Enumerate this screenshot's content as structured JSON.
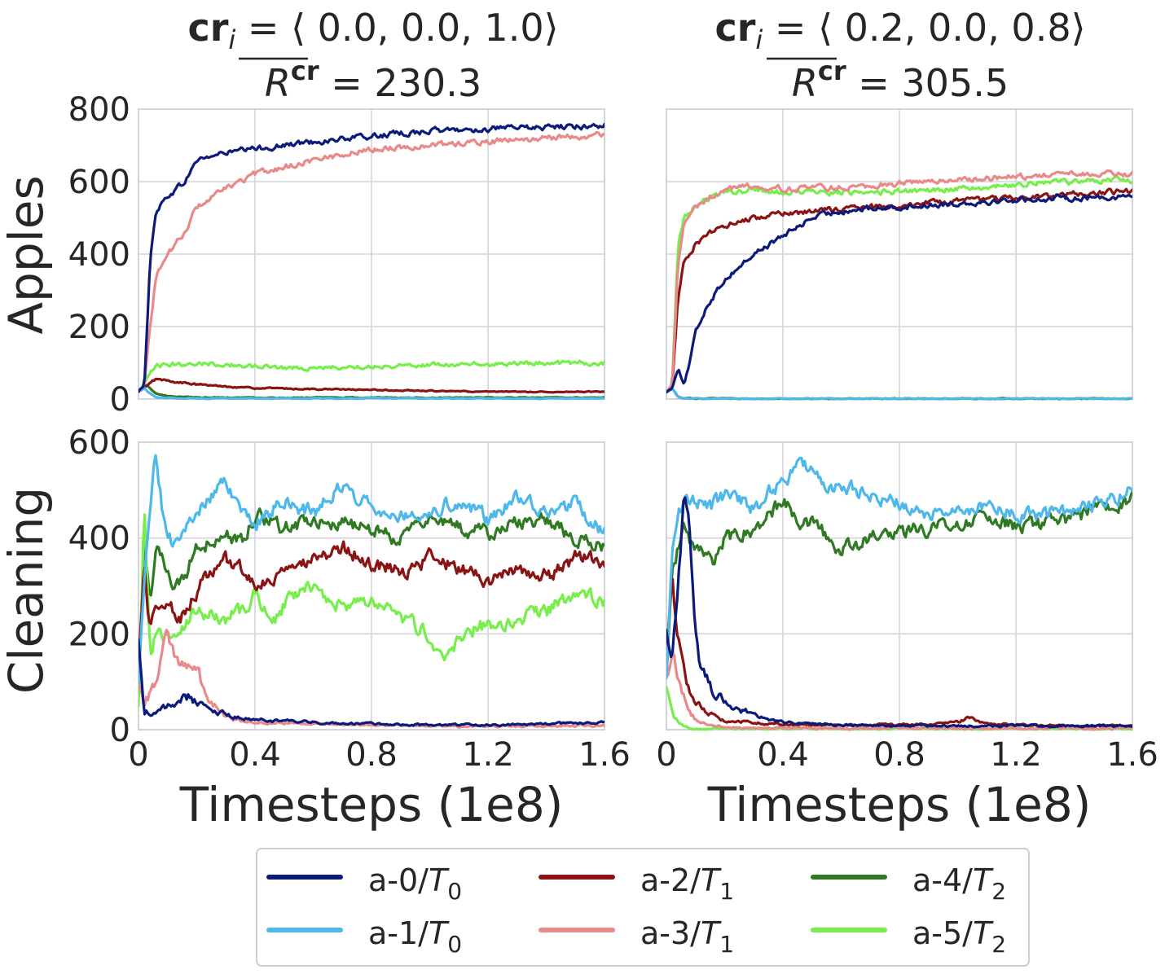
{
  "figure": {
    "panels": [
      {
        "title_cr_bold": "cr",
        "title_cr_sub": "i",
        "title_cr_rest": " = ⟨ 0.0, 0.0, 1.0⟩",
        "title_r_main": "R",
        "title_r_sup": "cr",
        "title_r_rest": " = 230.3"
      },
      {
        "title_cr_bold": "cr",
        "title_cr_sub": "i",
        "title_cr_rest": " = ⟨ 0.2, 0.0, 0.8⟩",
        "title_r_main": "R",
        "title_r_sup": "cr",
        "title_r_rest": " = 305.5"
      }
    ],
    "row_labels": [
      "Apples",
      "Cleaning"
    ],
    "xlabel": "Timesteps (1e8)",
    "x_ticks": [
      "0",
      "0.4",
      "0.8",
      "1.2",
      "1.6"
    ],
    "apples_ticks": [
      "0",
      "200",
      "400",
      "600",
      "800"
    ],
    "cleaning_ticks": [
      "0",
      "200",
      "400",
      "600"
    ]
  },
  "legend": [
    {
      "agent": "a-0/",
      "team": "T",
      "sub": "0",
      "color": "#0c1a7a"
    },
    {
      "agent": "a-1/",
      "team": "T",
      "sub": "0",
      "color": "#4fb8ea"
    },
    {
      "agent": "a-2/",
      "team": "T",
      "sub": "1",
      "color": "#8a1414"
    },
    {
      "agent": "a-3/",
      "team": "T",
      "sub": "1",
      "color": "#e88a8a"
    },
    {
      "agent": "a-4/",
      "team": "T",
      "sub": "2",
      "color": "#2f7a22"
    },
    {
      "agent": "a-5/",
      "team": "T",
      "sub": "2",
      "color": "#78ee4c"
    }
  ],
  "chart_data": [
    {
      "type": "line",
      "title": "cr_i = ⟨0.0, 0.0, 1.0⟩, R̄cr = 230.3",
      "ylabel": "Apples",
      "xlabel": "Timesteps (1e8)",
      "xlim": [
        0,
        1.6
      ],
      "ylim": [
        0,
        800
      ],
      "grid": true,
      "series": [
        {
          "name": "a-0/T0",
          "x": [
            0,
            0.02,
            0.04,
            0.06,
            0.1,
            0.16,
            0.2,
            0.3,
            0.4,
            0.6,
            0.8,
            1.0,
            1.2,
            1.4,
            1.6
          ],
          "y": [
            20,
            40,
            380,
            520,
            560,
            600,
            660,
            680,
            690,
            710,
            725,
            740,
            745,
            750,
            755
          ]
        },
        {
          "name": "a-1/T0",
          "x": [
            0,
            0.02,
            0.04,
            0.06,
            0.1,
            0.2,
            0.4,
            0.8,
            1.2,
            1.6
          ],
          "y": [
            20,
            30,
            15,
            5,
            3,
            2,
            2,
            2,
            2,
            2
          ]
        },
        {
          "name": "a-2/T1",
          "x": [
            0,
            0.02,
            0.04,
            0.06,
            0.1,
            0.2,
            0.4,
            0.8,
            1.2,
            1.6
          ],
          "y": [
            20,
            30,
            45,
            55,
            50,
            40,
            30,
            25,
            20,
            20
          ]
        },
        {
          "name": "a-3/T1",
          "x": [
            0,
            0.02,
            0.04,
            0.06,
            0.1,
            0.16,
            0.2,
            0.3,
            0.4,
            0.6,
            0.8,
            1.0,
            1.2,
            1.4,
            1.6
          ],
          "y": [
            20,
            40,
            200,
            340,
            400,
            460,
            530,
            580,
            620,
            660,
            690,
            700,
            710,
            720,
            730
          ]
        },
        {
          "name": "a-4/T2",
          "x": [
            0,
            0.02,
            0.04,
            0.06,
            0.1,
            0.2,
            0.4,
            0.8,
            1.2,
            1.6
          ],
          "y": [
            20,
            40,
            30,
            15,
            8,
            5,
            4,
            4,
            4,
            4
          ]
        },
        {
          "name": "a-5/T2",
          "x": [
            0,
            0.02,
            0.04,
            0.06,
            0.1,
            0.2,
            0.4,
            0.6,
            0.8,
            1.0,
            1.2,
            1.4,
            1.6
          ],
          "y": [
            20,
            40,
            70,
            90,
            95,
            100,
            90,
            85,
            90,
            95,
            95,
            100,
            100
          ]
        }
      ]
    },
    {
      "type": "line",
      "title": "cr_i = ⟨0.2, 0.0, 0.8⟩, R̄cr = 305.5",
      "ylabel": "Apples",
      "xlabel": "Timesteps (1e8)",
      "xlim": [
        0,
        1.6
      ],
      "ylim": [
        0,
        800
      ],
      "grid": true,
      "series": [
        {
          "name": "a-0/T0",
          "x": [
            0,
            0.02,
            0.04,
            0.06,
            0.08,
            0.1,
            0.14,
            0.2,
            0.3,
            0.4,
            0.5,
            0.6,
            0.8,
            1.0,
            1.2,
            1.4,
            1.6
          ],
          "y": [
            20,
            30,
            90,
            40,
            100,
            180,
            260,
            330,
            400,
            450,
            500,
            520,
            530,
            540,
            550,
            555,
            560
          ]
        },
        {
          "name": "a-1/T0",
          "x": [
            0,
            0.02,
            0.04,
            0.08,
            0.2,
            0.6,
            1.0,
            1.6
          ],
          "y": [
            20,
            30,
            5,
            2,
            1,
            1,
            1,
            1
          ]
        },
        {
          "name": "a-2/T1",
          "x": [
            0,
            0.02,
            0.04,
            0.06,
            0.1,
            0.2,
            0.3,
            0.4,
            0.6,
            0.8,
            1.0,
            1.2,
            1.4,
            1.6
          ],
          "y": [
            20,
            30,
            280,
            380,
            430,
            480,
            500,
            510,
            525,
            535,
            545,
            555,
            565,
            575
          ]
        },
        {
          "name": "a-3/T1",
          "x": [
            0,
            0.02,
            0.04,
            0.06,
            0.1,
            0.2,
            0.3,
            0.4,
            0.6,
            0.8,
            1.0,
            1.2,
            1.4,
            1.6
          ],
          "y": [
            20,
            40,
            380,
            480,
            530,
            580,
            590,
            580,
            585,
            595,
            605,
            615,
            620,
            620
          ]
        },
        {
          "name": "a-4/T2",
          "x": [
            0,
            0.02,
            0.04,
            0.06,
            0.2,
            0.6,
            1.0,
            1.6
          ],
          "y": [
            20,
            30,
            5,
            2,
            1,
            1,
            1,
            1
          ]
        },
        {
          "name": "a-5/T2",
          "x": [
            0,
            0.02,
            0.04,
            0.06,
            0.1,
            0.2,
            0.3,
            0.4,
            0.6,
            0.8,
            1.0,
            1.2,
            1.4,
            1.6
          ],
          "y": [
            20,
            40,
            420,
            500,
            540,
            570,
            575,
            570,
            570,
            575,
            580,
            590,
            600,
            605
          ]
        }
      ]
    },
    {
      "type": "line",
      "ylabel": "Cleaning",
      "xlabel": "Timesteps (1e8)",
      "xlim": [
        0,
        1.6
      ],
      "ylim": [
        0,
        600
      ],
      "grid": true,
      "series": [
        {
          "name": "a-0/T0",
          "x": [
            0,
            0.02,
            0.06,
            0.1,
            0.18,
            0.22,
            0.3,
            0.4,
            0.6,
            0.8,
            1.0,
            1.2,
            1.4,
            1.6
          ],
          "y": [
            190,
            40,
            30,
            50,
            70,
            50,
            30,
            20,
            15,
            12,
            10,
            10,
            12,
            15
          ]
        },
        {
          "name": "a-1/T0",
          "x": [
            0,
            0.02,
            0.04,
            0.06,
            0.08,
            0.1,
            0.14,
            0.18,
            0.24,
            0.3,
            0.34,
            0.4,
            0.5,
            0.6,
            0.7,
            0.8,
            0.9,
            1.0,
            1.1,
            1.2,
            1.3,
            1.4,
            1.5,
            1.6
          ],
          "y": [
            100,
            300,
            480,
            590,
            470,
            400,
            380,
            440,
            480,
            520,
            460,
            430,
            480,
            450,
            510,
            470,
            450,
            460,
            480,
            440,
            490,
            460,
            470,
            410
          ]
        },
        {
          "name": "a-2/T1",
          "x": [
            0,
            0.02,
            0.04,
            0.06,
            0.1,
            0.14,
            0.2,
            0.24,
            0.3,
            0.36,
            0.4,
            0.5,
            0.6,
            0.7,
            0.8,
            0.9,
            1.0,
            1.1,
            1.2,
            1.3,
            1.4,
            1.5,
            1.6
          ],
          "y": [
            150,
            350,
            200,
            260,
            270,
            230,
            290,
            320,
            350,
            330,
            300,
            320,
            360,
            380,
            350,
            330,
            360,
            340,
            310,
            330,
            320,
            360,
            350
          ]
        },
        {
          "name": "a-3/T1",
          "x": [
            0,
            0.02,
            0.06,
            0.1,
            0.12,
            0.16,
            0.2,
            0.24,
            0.3,
            0.4,
            0.6,
            0.8,
            1.0,
            1.2,
            1.4,
            1.6
          ],
          "y": [
            100,
            60,
            90,
            210,
            160,
            130,
            120,
            60,
            25,
            15,
            12,
            10,
            8,
            8,
            8,
            8
          ]
        },
        {
          "name": "a-4/T2",
          "x": [
            0,
            0.02,
            0.04,
            0.06,
            0.08,
            0.12,
            0.16,
            0.2,
            0.26,
            0.3,
            0.36,
            0.4,
            0.5,
            0.6,
            0.7,
            0.8,
            0.9,
            1.0,
            1.1,
            1.2,
            1.3,
            1.4,
            1.5,
            1.6
          ],
          "y": [
            100,
            380,
            250,
            400,
            360,
            280,
            320,
            380,
            400,
            410,
            390,
            450,
            420,
            440,
            430,
            420,
            400,
            440,
            420,
            410,
            430,
            440,
            400,
            380
          ]
        },
        {
          "name": "a-5/T2",
          "x": [
            0,
            0.02,
            0.04,
            0.06,
            0.1,
            0.14,
            0.2,
            0.26,
            0.3,
            0.36,
            0.4,
            0.46,
            0.5,
            0.6,
            0.7,
            0.8,
            0.9,
            1.0,
            1.04,
            1.1,
            1.16,
            1.2,
            1.3,
            1.4,
            1.5,
            1.6
          ],
          "y": [
            50,
            470,
            150,
            200,
            190,
            210,
            250,
            240,
            230,
            250,
            290,
            210,
            260,
            300,
            260,
            270,
            230,
            200,
            140,
            180,
            210,
            220,
            230,
            250,
            280,
            270
          ]
        }
      ]
    },
    {
      "type": "line",
      "ylabel": "Cleaning",
      "xlabel": "Timesteps (1e8)",
      "xlim": [
        0,
        1.6
      ],
      "ylim": [
        0,
        600
      ],
      "grid": true,
      "series": [
        {
          "name": "a-0/T0",
          "x": [
            0,
            0.02,
            0.04,
            0.06,
            0.08,
            0.1,
            0.12,
            0.16,
            0.2,
            0.3,
            0.4,
            0.6,
            0.8,
            1.0,
            1.2,
            1.4,
            1.6
          ],
          "y": [
            200,
            160,
            300,
            490,
            420,
            220,
            120,
            80,
            60,
            30,
            15,
            10,
            8,
            8,
            8,
            8,
            8
          ]
        },
        {
          "name": "a-1/T0",
          "x": [
            0,
            0.02,
            0.04,
            0.06,
            0.1,
            0.16,
            0.2,
            0.26,
            0.3,
            0.36,
            0.4,
            0.46,
            0.5,
            0.56,
            0.6,
            0.7,
            0.8,
            0.9,
            1.0,
            1.1,
            1.2,
            1.3,
            1.4,
            1.5,
            1.6
          ],
          "y": [
            100,
            380,
            460,
            470,
            480,
            470,
            490,
            480,
            460,
            500,
            520,
            560,
            550,
            500,
            510,
            490,
            470,
            450,
            470,
            460,
            450,
            450,
            460,
            480,
            500
          ]
        },
        {
          "name": "a-2/T1",
          "x": [
            0,
            0.02,
            0.04,
            0.06,
            0.08,
            0.12,
            0.16,
            0.2,
            0.3,
            0.4,
            0.6,
            0.8,
            1.0,
            1.04,
            1.1,
            1.2,
            1.4,
            1.6
          ],
          "y": [
            150,
            300,
            200,
            150,
            80,
            50,
            30,
            20,
            15,
            10,
            10,
            10,
            15,
            25,
            12,
            10,
            8,
            8
          ]
        },
        {
          "name": "a-3/T1",
          "x": [
            0,
            0.02,
            0.04,
            0.06,
            0.08,
            0.1,
            0.14,
            0.2,
            0.3,
            0.4,
            0.6,
            1.0,
            1.6
          ],
          "y": [
            100,
            170,
            120,
            80,
            40,
            20,
            10,
            5,
            3,
            3,
            3,
            3,
            3
          ]
        },
        {
          "name": "a-4/T2",
          "x": [
            0,
            0.02,
            0.04,
            0.06,
            0.1,
            0.16,
            0.2,
            0.26,
            0.3,
            0.36,
            0.4,
            0.46,
            0.5,
            0.56,
            0.6,
            0.7,
            0.8,
            0.9,
            1.0,
            1.1,
            1.2,
            1.3,
            1.4,
            1.5,
            1.6
          ],
          "y": [
            100,
            340,
            380,
            420,
            380,
            350,
            400,
            410,
            420,
            450,
            480,
            440,
            430,
            400,
            380,
            400,
            410,
            420,
            430,
            440,
            420,
            430,
            440,
            470,
            480
          ]
        },
        {
          "name": "a-5/T2",
          "x": [
            0,
            0.02,
            0.04,
            0.06,
            0.08,
            0.12,
            0.2,
            0.3,
            0.6,
            1.0,
            1.6
          ],
          "y": [
            80,
            30,
            15,
            8,
            4,
            2,
            2,
            2,
            2,
            2,
            2
          ]
        }
      ]
    }
  ]
}
